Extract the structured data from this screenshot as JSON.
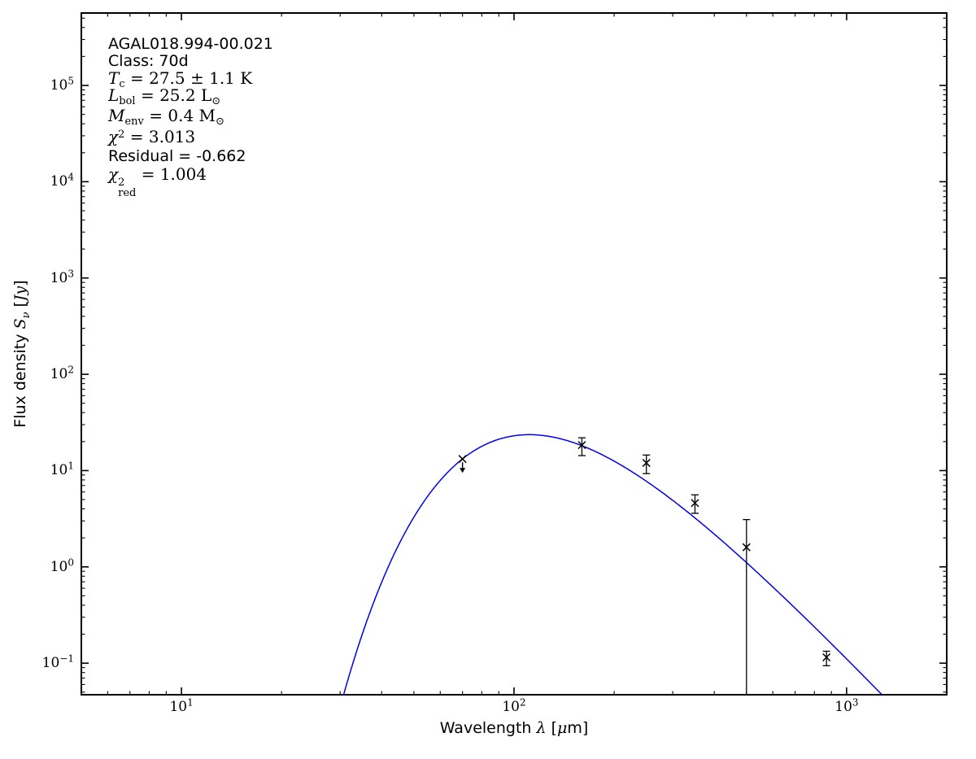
{
  "figure": {
    "background": "#ffffff",
    "annotation": {
      "source_name": "AGAL018.994-00.021",
      "class_line": "Class: 70d",
      "tc": {
        "sym": "T",
        "sub": "c",
        "rest": " = 27.5 ± 1.1 K"
      },
      "lbol": {
        "sym": "L",
        "sub": "bol",
        "rest": " = 25.2 L",
        "unit_sub": "⊙"
      },
      "menv": {
        "sym": "M",
        "sub": "env",
        "rest": " = 0.4 M",
        "unit_sub": "⊙"
      },
      "chi2": {
        "sym": "χ",
        "sup": "2",
        "rest": " = 3.013"
      },
      "residual": "Residual = -0.662",
      "chi2red": {
        "sym": "χ",
        "sup": "2",
        "sub": "red",
        "rest": " = 1.004"
      }
    }
  },
  "chart_data": {
    "type": "line",
    "subtype": "SED greybody fit with errorbar photometry",
    "title": "",
    "xlabel": "Wavelength λ [μm]",
    "ylabel": "Flux density Sν [Jy]",
    "xlabel_parts": {
      "prefix": "Wavelength ",
      "lambda": "λ",
      "mid": " [",
      "mu": "μ",
      "suffix": "m]"
    },
    "ylabel_parts": {
      "prefix": "Flux density ",
      "sym": "S",
      "sub": "ν",
      "mid": " [",
      "unit": "Jy",
      "suffix": "]"
    },
    "xscale": "log",
    "yscale": "log",
    "xlim": [
      5,
      2000
    ],
    "ylim": [
      0.047,
      565000
    ],
    "x_major_ticks": [
      10,
      100,
      1000
    ],
    "y_major_ticks": [
      0.1,
      1,
      10,
      100,
      1000,
      10000,
      100000
    ],
    "grid": false,
    "legend": "none",
    "axis_color": "#000000",
    "series": [
      {
        "name": "greybody-model-curve",
        "type": "model_curve",
        "color": "#0000ee",
        "params": {
          "T_K": 27.5,
          "beta": 1.75,
          "peak_flux_jy": 23.6,
          "hck_um_K": 14387.77
        }
      },
      {
        "name": "photometry-points",
        "type": "errorbar_points",
        "color": "#000000",
        "marker": "x",
        "points": [
          {
            "wavelength_um": 70,
            "flux_jy": 13.2,
            "upper_limit": true
          },
          {
            "wavelength_um": 160,
            "flux_jy": 18.4,
            "err_plus": 3.5,
            "err_minus": 4.1
          },
          {
            "wavelength_um": 250,
            "flux_jy": 12.0,
            "err_plus": 2.5,
            "err_minus": 2.7
          },
          {
            "wavelength_um": 350,
            "flux_jy": 4.6,
            "err_plus": 1.0,
            "err_minus": 1.0
          },
          {
            "wavelength_um": 500,
            "flux_jy": 1.6,
            "err_plus": 1.5,
            "err_minus": 1.6
          },
          {
            "wavelength_um": 870,
            "flux_jy": 0.115,
            "err_plus": 0.018,
            "err_minus": 0.021
          }
        ]
      }
    ]
  }
}
